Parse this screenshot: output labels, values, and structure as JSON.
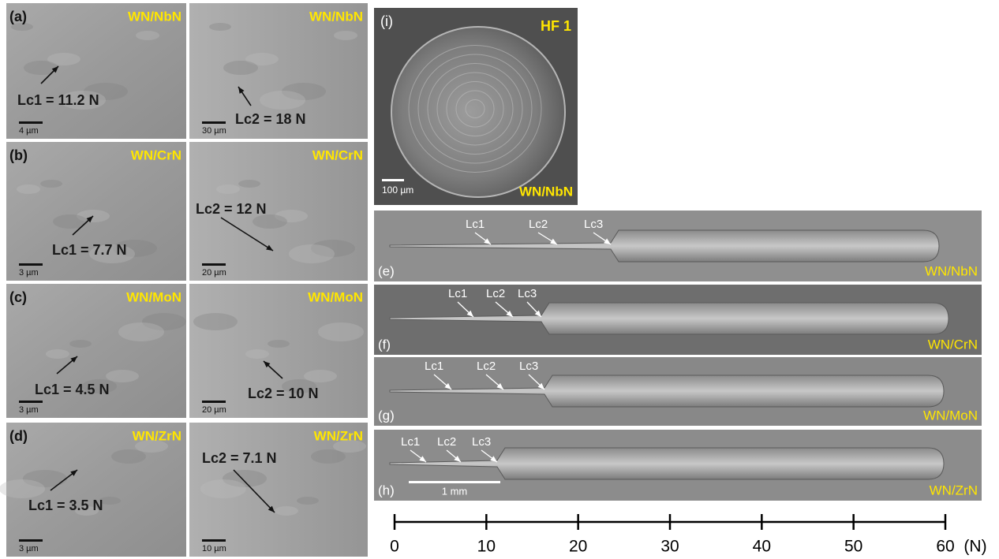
{
  "sem_panels": [
    {
      "label": "(a)",
      "left": {
        "material": "WN/NbN",
        "critical_load": "Lc1 = 11.2 N",
        "scale_bar": "4 µm"
      },
      "right": {
        "material": "WN/NbN",
        "critical_load": "Lc2 = 18 N",
        "scale_bar": "30 µm"
      }
    },
    {
      "label": "(b)",
      "left": {
        "material": "WN/CrN",
        "critical_load": "Lc1 = 7.7 N",
        "scale_bar": "3 µm"
      },
      "right": {
        "material": "WN/CrN",
        "critical_load": "Lc2 = 12 N",
        "scale_bar": "20 µm"
      }
    },
    {
      "label": "(c)",
      "left": {
        "material": "WN/MoN",
        "critical_load": "Lc1 = 4.5 N",
        "scale_bar": "3 µm"
      },
      "right": {
        "material": "WN/MoN",
        "critical_load": "Lc2 = 10 N",
        "scale_bar": "20 µm"
      }
    },
    {
      "label": "(d)",
      "left": {
        "material": "WN/ZrN",
        "critical_load": "Lc1 = 3.5 N",
        "scale_bar": "3 µm"
      },
      "right": {
        "material": "WN/ZrN",
        "critical_load": "Lc2 = 7.1 N",
        "scale_bar": "10 µm"
      }
    }
  ],
  "indentation": {
    "label": "(i)",
    "test": "HF 1",
    "material": "WN/NbN",
    "scale_bar": "100 µm"
  },
  "scratch_tracks": [
    {
      "label": "(e)",
      "material": "WN/NbN",
      "markers": [
        "Lc1",
        "Lc2",
        "Lc3"
      ]
    },
    {
      "label": "(f)",
      "material": "WN/CrN",
      "markers": [
        "Lc1",
        "Lc2",
        "Lc3"
      ]
    },
    {
      "label": "(g)",
      "material": "WN/MoN",
      "markers": [
        "Lc1",
        "Lc2",
        "Lc3"
      ]
    },
    {
      "label": "(h)",
      "material": "WN/ZrN",
      "markers": [
        "Lc1",
        "Lc2",
        "Lc3"
      ],
      "scale_bar": "1 mm"
    }
  ],
  "force_axis": {
    "ticks": [
      0,
      10,
      20,
      30,
      40,
      50,
      60
    ],
    "unit": "(N)"
  }
}
